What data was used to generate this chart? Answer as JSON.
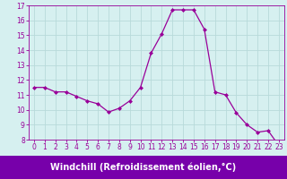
{
  "x": [
    0,
    1,
    2,
    3,
    4,
    5,
    6,
    7,
    8,
    9,
    10,
    11,
    12,
    13,
    14,
    15,
    16,
    17,
    18,
    19,
    20,
    21,
    22,
    23
  ],
  "y": [
    11.5,
    11.5,
    11.2,
    11.2,
    10.9,
    10.6,
    10.4,
    9.85,
    10.1,
    10.6,
    11.5,
    13.8,
    15.1,
    16.7,
    16.7,
    16.7,
    15.4,
    11.2,
    11.0,
    9.8,
    9.0,
    8.5,
    8.6,
    7.6
  ],
  "line_color": "#990099",
  "marker": "D",
  "marker_size": 2.0,
  "bg_color": "#d6f0f0",
  "grid_color": "#b8dada",
  "xlabel": "Windchill (Refroidissement éolien,°C)",
  "xlabel_color": "#ffffff",
  "xlabel_bg": "#7700aa",
  "ylim": [
    8,
    17
  ],
  "xlim": [
    -0.5,
    23.5
  ],
  "yticks": [
    8,
    9,
    10,
    11,
    12,
    13,
    14,
    15,
    16,
    17
  ],
  "xticks": [
    0,
    1,
    2,
    3,
    4,
    5,
    6,
    7,
    8,
    9,
    10,
    11,
    12,
    13,
    14,
    15,
    16,
    17,
    18,
    19,
    20,
    21,
    22,
    23
  ],
  "tick_label_fontsize": 5.5,
  "xlabel_fontsize": 7.0
}
